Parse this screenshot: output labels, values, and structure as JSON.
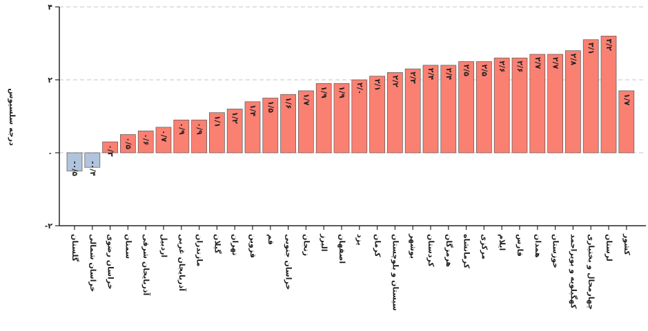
{
  "chart_data": {
    "type": "bar",
    "title": "",
    "xlabel": "",
    "ylabel": "درجه سلسیوس",
    "ylim": [
      -2,
      4
    ],
    "yticks": [
      -2,
      0,
      2,
      4
    ],
    "ytick_labels": [
      "-۲",
      "۰",
      "۲",
      "۴"
    ],
    "grid": true,
    "colors": {
      "positive": "#fa8072",
      "negative": "#b0c4de"
    },
    "categories": [
      "گلستان",
      "خراسان شمالی",
      "خراسان رضوی",
      "سمنان",
      "آذربایجان شرقی",
      "اردبیل",
      "آذربایجان غربی",
      "مازندران",
      "گیلان",
      "تهران",
      "قزوین",
      "قم",
      "خراسان جنوبی",
      "زنجان",
      "البرز",
      "اصفهان",
      "یزد",
      "کرمان",
      "سیستان و بلوچستان",
      "بوشهر",
      "کردستان",
      "هرمزگان",
      "کرمانشاه",
      "مرکزی",
      "ایلام",
      "فارس",
      "همدان",
      "خوزستان",
      "کهگیلویه و بویراحمد",
      "چهارمحال و بختیاری",
      "لرستان",
      "کشور"
    ],
    "values": [
      -0.5,
      -0.4,
      0.3,
      0.5,
      0.6,
      0.7,
      0.9,
      0.9,
      1.1,
      1.2,
      1.4,
      1.5,
      1.6,
      1.7,
      1.9,
      1.9,
      2.0,
      2.1,
      2.2,
      2.3,
      2.4,
      2.4,
      2.5,
      2.5,
      2.6,
      2.6,
      2.7,
      2.7,
      2.8,
      3.1,
      3.2,
      1.7
    ],
    "value_labels": [
      "-۰/۵",
      "-۰/۴",
      "۰/۳",
      "۰/۵",
      "۰/۶",
      "۰/۷",
      "۰/۹",
      "۰/۹",
      "۱/۱",
      "۱/۲",
      "۱/۴",
      "۱/۵",
      "۱/۶",
      "۱/۷",
      "۱/۹",
      "۱/۹",
      "۲/۰",
      "۲/۱",
      "۲/۲",
      "۲/۳",
      "۲/۴",
      "۲/۴",
      "۲/۵",
      "۲/۵",
      "۲/۶",
      "۲/۶",
      "۲/۷",
      "۲/۷",
      "۲/۸",
      "۳/۱",
      "۳/۲",
      "۱/۷"
    ]
  }
}
